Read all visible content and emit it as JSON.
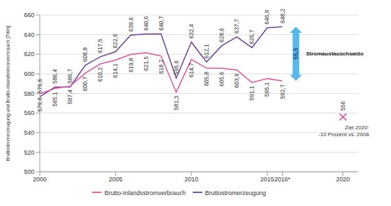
{
  "chart_data": {
    "type": "line",
    "x": [
      2000,
      2001,
      2002,
      2003,
      2004,
      2005,
      2006,
      2007,
      2008,
      2009,
      2010,
      2011,
      2012,
      2013,
      2014,
      2015,
      2016
    ],
    "series": [
      {
        "name": "Bruttostromerzeugung",
        "color": "#6a3d9a",
        "values": [
          576.6,
          586.4,
          586.7,
          608.8,
          617.5,
          622.6,
          639.6,
          640.6,
          640.7,
          595.6,
          632.4,
          612.1,
          628.6,
          637.7,
          626.7,
          646.9,
          648.2
        ],
        "value_labels": [
          "576,6",
          "586,4",
          "586,7",
          "608,8",
          "617,5",
          "622,6",
          "639,6",
          "640,6",
          "640,7",
          "595,6",
          "632,4",
          "612,1",
          "628,6",
          "637,7",
          "626,7",
          "646,9",
          "648,2"
        ]
      },
      {
        "name": "Brutto-Inlandsstromverbrauch",
        "color": "#e0509b",
        "values": [
          579.6,
          585.1,
          587.4,
          600.7,
          610.2,
          614.1,
          619.8,
          621.5,
          618.2,
          581.3,
          614.7,
          605.8,
          605.6,
          603.9,
          591.1,
          595.1,
          592.7
        ],
        "value_labels": [
          "579,6",
          "585,1",
          "587,4",
          "600,7",
          "610,2",
          "614,1",
          "619,8",
          "621,5",
          "618,2",
          "581,3",
          "614,7",
          "605,8",
          "605,6",
          "603,9",
          "591,1",
          "595,1",
          "592,7"
        ]
      }
    ],
    "y_label": "Bruttostromerzeugung und Brutto-Inlandsstromverbrauch [TWh]",
    "xlim": [
      2000,
      2021
    ],
    "xticks": [
      2000,
      2005,
      2010,
      2015,
      {
        "value": 2016,
        "label": "2016*"
      },
      2020
    ],
    "ylim": [
      500,
      660
    ],
    "yticks": [
      500,
      520,
      540,
      560,
      580,
      600,
      620,
      640,
      660
    ],
    "grid": true,
    "legend": "bottom",
    "data_labels": true,
    "annotations": [
      {
        "text": "55,5"
      },
      {
        "text": "Stromaustauschsaldo"
      }
    ],
    "target": {
      "x": 2020,
      "y": 556,
      "color": "#e0509b",
      "text": "Ziel 2020: -10 Prozent vs. 2008"
    }
  }
}
